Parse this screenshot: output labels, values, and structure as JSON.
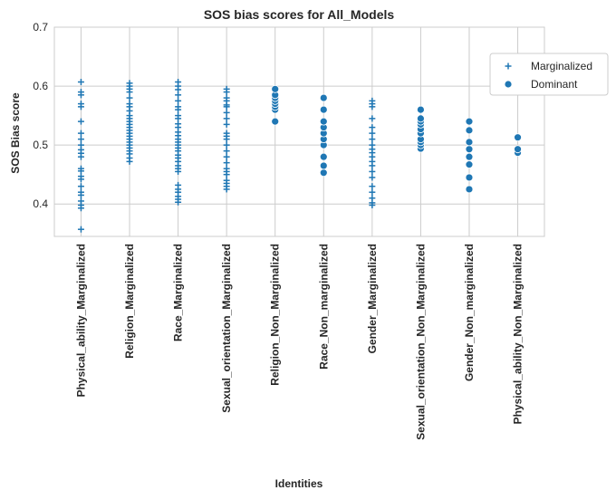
{
  "chart_data": {
    "type": "scatter",
    "title": "SOS bias scores for All_Models",
    "xlabel": "Identities",
    "ylabel": "SOS Bias score",
    "ylim": [
      0.345,
      0.7
    ],
    "yticks": [
      0.4,
      0.5,
      0.6,
      0.7
    ],
    "grid": true,
    "legend_position": "top-right",
    "categories": [
      "Physical_ability_Marginalized",
      "Religion_Marginalized",
      "Race_Marginalized",
      "Sexual_orientation_Marginalized",
      "Religion_Non_Marginalized",
      "Race_Non_marginalized",
      "Gender_Marginalized",
      "Sexual_orientation_Non_Marginalized",
      "Gender_Non_marginalized",
      "Physical_ability_Non_Marginalized"
    ],
    "series": [
      {
        "name": "Marginalized",
        "marker": "plus",
        "color": "#1f77b4",
        "points": [
          [
            "Physical_ability_Marginalized",
            [
              0.357,
              0.393,
              0.398,
              0.405,
              0.415,
              0.42,
              0.43,
              0.442,
              0.447,
              0.456,
              0.46,
              0.48,
              0.486,
              0.492,
              0.5,
              0.51,
              0.52,
              0.54,
              0.565,
              0.57,
              0.585,
              0.59,
              0.607
            ]
          ],
          [
            "Religion_Marginalized",
            [
              0.472,
              0.478,
              0.485,
              0.49,
              0.495,
              0.5,
              0.505,
              0.51,
              0.515,
              0.52,
              0.525,
              0.53,
              0.535,
              0.54,
              0.545,
              0.55,
              0.558,
              0.565,
              0.57,
              0.58,
              0.59,
              0.595,
              0.6,
              0.605
            ]
          ],
          [
            "Race_Marginalized",
            [
              0.403,
              0.408,
              0.413,
              0.42,
              0.425,
              0.432,
              0.455,
              0.46,
              0.465,
              0.472,
              0.478,
              0.483,
              0.49,
              0.495,
              0.5,
              0.505,
              0.51,
              0.516,
              0.522,
              0.53,
              0.536,
              0.545,
              0.55,
              0.56,
              0.565,
              0.575,
              0.585,
              0.594,
              0.6,
              0.607
            ]
          ],
          [
            "Sexual_orientation_Marginalized",
            [
              0.425,
              0.43,
              0.435,
              0.44,
              0.45,
              0.455,
              0.46,
              0.47,
              0.48,
              0.49,
              0.5,
              0.51,
              0.515,
              0.52,
              0.535,
              0.545,
              0.555,
              0.565,
              0.568,
              0.575,
              0.58,
              0.59,
              0.595
            ]
          ],
          [
            "Gender_Marginalized",
            [
              0.398,
              0.402,
              0.41,
              0.42,
              0.43,
              0.445,
              0.455,
              0.465,
              0.472,
              0.48,
              0.487,
              0.493,
              0.5,
              0.51,
              0.52,
              0.53,
              0.545,
              0.565,
              0.57,
              0.575
            ]
          ]
        ]
      },
      {
        "name": "Dominant",
        "marker": "circle",
        "color": "#1f77b4",
        "points": [
          [
            "Religion_Non_Marginalized",
            [
              0.54,
              0.56,
              0.565,
              0.57,
              0.575,
              0.58,
              0.585,
              0.595
            ]
          ],
          [
            "Race_Non_marginalized",
            [
              0.453,
              0.465,
              0.48,
              0.5,
              0.51,
              0.52,
              0.53,
              0.54,
              0.56,
              0.58
            ]
          ],
          [
            "Sexual_orientation_Non_Marginalized",
            [
              0.494,
              0.5,
              0.505,
              0.51,
              0.52,
              0.527,
              0.535,
              0.54,
              0.545,
              0.56
            ]
          ],
          [
            "Gender_Non_marginalized",
            [
              0.425,
              0.445,
              0.467,
              0.48,
              0.493,
              0.505,
              0.525,
              0.54
            ]
          ],
          [
            "Physical_ability_Non_Marginalized",
            [
              0.487,
              0.493,
              0.513
            ]
          ]
        ]
      }
    ]
  }
}
